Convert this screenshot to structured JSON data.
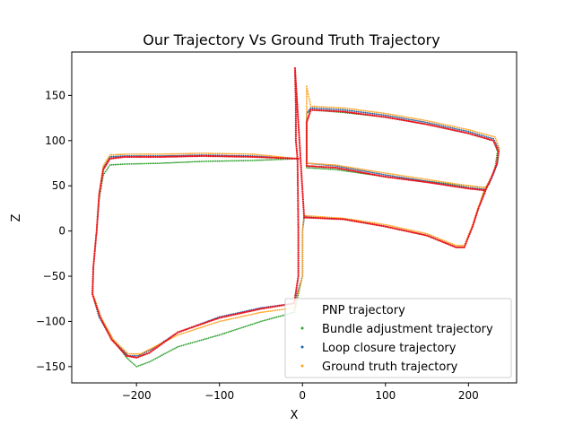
{
  "chart_data": {
    "type": "scatter",
    "title": "Our Trajectory Vs Ground Truth Trajectory",
    "xlabel": "X",
    "ylabel": "Z",
    "xlim": [
      -278,
      258
    ],
    "ylim": [
      -168,
      198
    ],
    "xticks": [
      -200,
      -100,
      0,
      100,
      200
    ],
    "yticks": [
      -150,
      -100,
      -50,
      0,
      50,
      100,
      150
    ],
    "grid": false,
    "legend_position": "lower-right",
    "series": [
      {
        "name": "PNP trajectory",
        "color": "#ffffff",
        "points": [
          [
            0,
            0
          ]
        ]
      },
      {
        "name": "Bundle adjustment trajectory",
        "color": "#2ca02c",
        "points": [
          [
            -5,
            80
          ],
          [
            -60,
            78
          ],
          [
            -120,
            77
          ],
          [
            -170,
            75
          ],
          [
            -215,
            74
          ],
          [
            -232,
            73
          ],
          [
            -240,
            62
          ],
          [
            -245,
            35
          ],
          [
            -248,
            0
          ],
          [
            -252,
            -40
          ],
          [
            -253,
            -70
          ],
          [
            -245,
            -95
          ],
          [
            -228,
            -120
          ],
          [
            -212,
            -140
          ],
          [
            -200,
            -150
          ],
          [
            -185,
            -145
          ],
          [
            -150,
            -128
          ],
          [
            -100,
            -115
          ],
          [
            -50,
            -100
          ],
          [
            -10,
            -90
          ],
          [
            0,
            -50
          ],
          [
            0,
            0
          ],
          [
            2,
            15
          ],
          [
            50,
            13
          ],
          [
            100,
            5
          ],
          [
            150,
            -5
          ],
          [
            185,
            -18
          ],
          [
            195,
            -18
          ],
          [
            205,
            5
          ],
          [
            212,
            25
          ],
          [
            220,
            48
          ],
          [
            225,
            52
          ],
          [
            232,
            70
          ],
          [
            235,
            88
          ],
          [
            230,
            100
          ],
          [
            200,
            108
          ],
          [
            150,
            118
          ],
          [
            100,
            126
          ],
          [
            50,
            131
          ],
          [
            10,
            134
          ],
          [
            5,
            130
          ],
          [
            5,
            100
          ],
          [
            5,
            70
          ],
          [
            40,
            68
          ],
          [
            100,
            60
          ],
          [
            150,
            55
          ],
          [
            200,
            50
          ],
          [
            220,
            48
          ]
        ]
      },
      {
        "name": "Loop closure trajectory",
        "color": "#1f5fa8",
        "points": [
          [
            -5,
            80
          ],
          [
            -60,
            83
          ],
          [
            -120,
            84
          ],
          [
            -170,
            83
          ],
          [
            -215,
            83
          ],
          [
            -232,
            82
          ],
          [
            -240,
            70
          ],
          [
            -245,
            40
          ],
          [
            -248,
            0
          ],
          [
            -252,
            -40
          ],
          [
            -253,
            -70
          ],
          [
            -245,
            -95
          ],
          [
            -230,
            -120
          ],
          [
            -210,
            -138
          ],
          [
            -198,
            -138
          ],
          [
            -180,
            -130
          ],
          [
            -150,
            -112
          ],
          [
            -100,
            -95
          ],
          [
            -50,
            -85
          ],
          [
            -10,
            -80
          ],
          [
            0,
            -50
          ],
          [
            0,
            0
          ],
          [
            2,
            16
          ],
          [
            50,
            13
          ],
          [
            100,
            5
          ],
          [
            150,
            -5
          ],
          [
            185,
            -18
          ],
          [
            195,
            -18
          ],
          [
            205,
            5
          ],
          [
            212,
            25
          ],
          [
            220,
            45
          ],
          [
            228,
            58
          ],
          [
            235,
            75
          ],
          [
            237,
            90
          ],
          [
            230,
            102
          ],
          [
            200,
            110
          ],
          [
            150,
            120
          ],
          [
            100,
            128
          ],
          [
            50,
            134
          ],
          [
            10,
            136
          ],
          [
            5,
            130
          ],
          [
            5,
            100
          ],
          [
            5,
            75
          ],
          [
            40,
            72
          ],
          [
            100,
            62
          ],
          [
            150,
            55
          ],
          [
            200,
            48
          ],
          [
            220,
            46
          ]
        ]
      },
      {
        "name": "Ground truth trajectory",
        "color": "#ff9f1c",
        "points": [
          [
            -5,
            80
          ],
          [
            -60,
            85
          ],
          [
            -120,
            86
          ],
          [
            -170,
            85
          ],
          [
            -215,
            85
          ],
          [
            -232,
            84
          ],
          [
            -240,
            72
          ],
          [
            -245,
            42
          ],
          [
            -248,
            0
          ],
          [
            -252,
            -40
          ],
          [
            -253,
            -68
          ],
          [
            -243,
            -95
          ],
          [
            -228,
            -120
          ],
          [
            -210,
            -136
          ],
          [
            -195,
            -136
          ],
          [
            -178,
            -128
          ],
          [
            -150,
            -115
          ],
          [
            -100,
            -100
          ],
          [
            -50,
            -90
          ],
          [
            -10,
            -85
          ],
          [
            0,
            -50
          ],
          [
            0,
            0
          ],
          [
            2,
            17
          ],
          [
            50,
            14
          ],
          [
            100,
            7
          ],
          [
            150,
            -3
          ],
          [
            185,
            -16
          ],
          [
            195,
            -16
          ],
          [
            205,
            7
          ],
          [
            212,
            27
          ],
          [
            220,
            47
          ],
          [
            228,
            60
          ],
          [
            235,
            78
          ],
          [
            237,
            92
          ],
          [
            232,
            104
          ],
          [
            200,
            112
          ],
          [
            150,
            122
          ],
          [
            100,
            130
          ],
          [
            50,
            136
          ],
          [
            10,
            138
          ],
          [
            5,
            160
          ],
          [
            5,
            132
          ],
          [
            5,
            100
          ],
          [
            5,
            75
          ],
          [
            40,
            73
          ],
          [
            100,
            64
          ],
          [
            150,
            57
          ],
          [
            200,
            50
          ],
          [
            220,
            48
          ]
        ]
      },
      {
        "name": "",
        "color": "#e8141c",
        "points": [
          [
            -5,
            80
          ],
          [
            -60,
            82
          ],
          [
            -120,
            83
          ],
          [
            -170,
            82
          ],
          [
            -215,
            82
          ],
          [
            -232,
            80
          ],
          [
            -240,
            68
          ],
          [
            -245,
            40
          ],
          [
            -248,
            0
          ],
          [
            -252,
            -40
          ],
          [
            -253,
            -70
          ],
          [
            -244,
            -95
          ],
          [
            -230,
            -120
          ],
          [
            -212,
            -138
          ],
          [
            -200,
            -140
          ],
          [
            -185,
            -135
          ],
          [
            -150,
            -112
          ],
          [
            -100,
            -96
          ],
          [
            -50,
            -86
          ],
          [
            -10,
            -80
          ],
          [
            -5,
            -50
          ],
          [
            -5,
            0
          ],
          [
            -6,
            80
          ],
          [
            -8,
            100
          ],
          [
            -8,
            140
          ],
          [
            -9,
            180
          ],
          [
            2,
            15
          ],
          [
            50,
            13
          ],
          [
            100,
            5
          ],
          [
            150,
            -5
          ],
          [
            185,
            -18
          ],
          [
            195,
            -18
          ],
          [
            205,
            5
          ],
          [
            212,
            25
          ],
          [
            222,
            48
          ],
          [
            228,
            60
          ],
          [
            234,
            74
          ],
          [
            236,
            88
          ],
          [
            230,
            100
          ],
          [
            200,
            108
          ],
          [
            150,
            118
          ],
          [
            100,
            126
          ],
          [
            50,
            132
          ],
          [
            10,
            134
          ],
          [
            5,
            120
          ],
          [
            5,
            90
          ],
          [
            5,
            72
          ],
          [
            40,
            70
          ],
          [
            100,
            60
          ],
          [
            150,
            54
          ],
          [
            200,
            47
          ],
          [
            220,
            45
          ]
        ]
      }
    ]
  }
}
